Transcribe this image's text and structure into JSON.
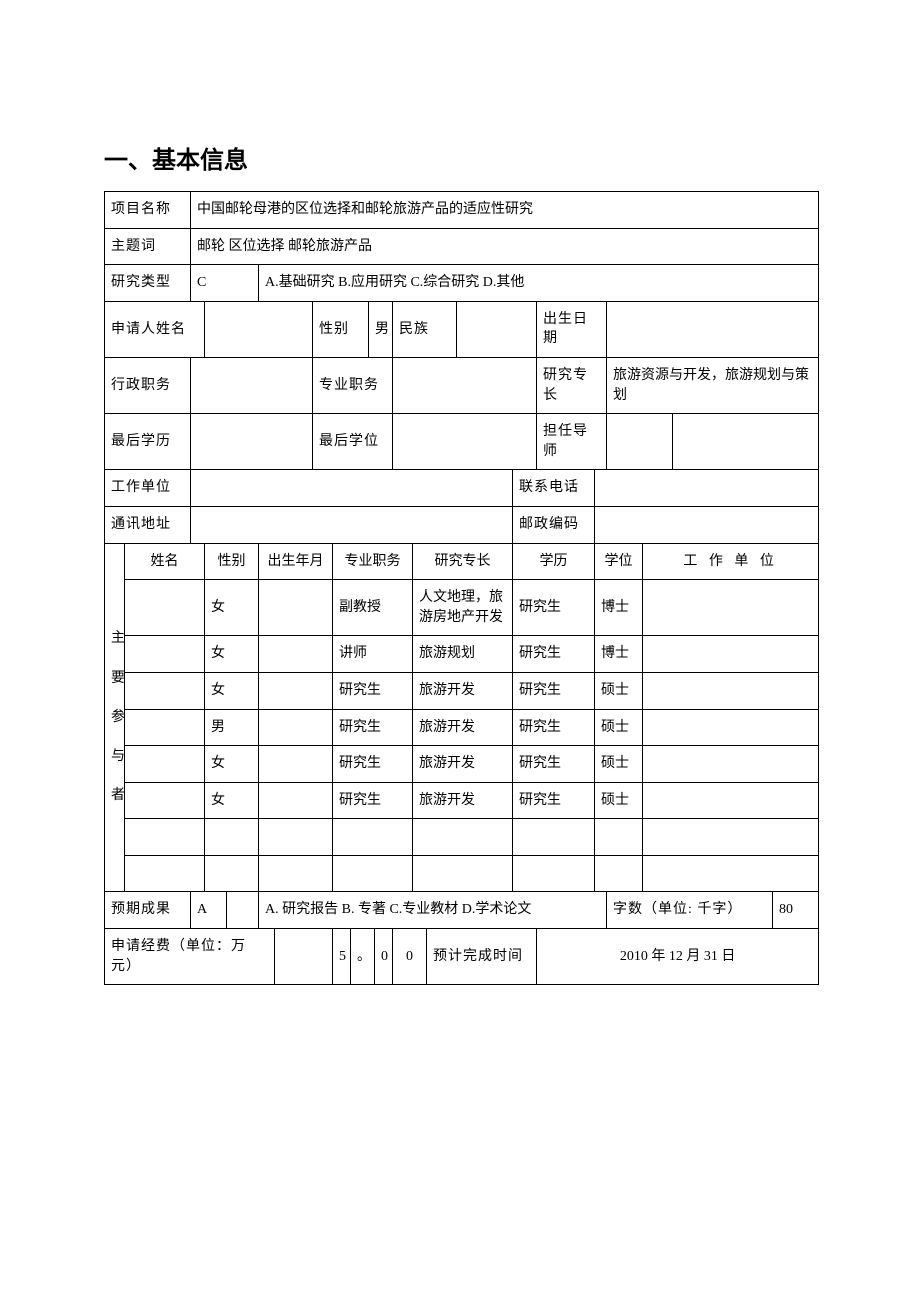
{
  "heading": "一、基本信息",
  "labels": {
    "project_name": "项目名称",
    "keywords": "主题词",
    "research_type": "研究类型",
    "applicant_name": "申请人姓名",
    "gender": "性别",
    "ethnicity": "民族",
    "birth_date": "出生日期",
    "admin_post": "行政职务",
    "pro_post": "专业职务",
    "specialty": "研究专长",
    "last_edu": "最后学历",
    "last_degree": "最后学位",
    "supervisor": "担任导师",
    "work_unit": "工作单位",
    "phone": "联系电话",
    "address": "通讯地址",
    "postcode": "邮政编码",
    "participants": "主\n要\n参\n与\n者",
    "p_name": "姓名",
    "p_gender": "性别",
    "p_birth": "出生年月",
    "p_post": "专业职务",
    "p_spec": "研究专长",
    "p_edu": "学历",
    "p_degree": "学位",
    "p_unit": "工 作 单 位",
    "expected_result": "预期成果",
    "word_count": "字数（单位: 千字）",
    "budget": "申请经费（单位：万元）",
    "est_completion": "预计完成时间"
  },
  "values": {
    "project_name": "中国邮轮母港的区位选择和邮轮旅游产品的适应性研究",
    "keywords": "邮轮 区位选择 邮轮旅游产品",
    "research_type_code": "C",
    "research_type_options": "A.基础研究 B.应用研究 C.综合研究 D.其他",
    "applicant_gender": "男",
    "specialty_text": "旅游资源与开发，旅游规划与策划",
    "expected_result_code": "A",
    "expected_result_options": "A. 研究报告 B. 专著 C.专业教材 D.学术论文",
    "word_count": "80",
    "budget_d1": "5",
    "budget_dot": "。",
    "budget_d2": "0",
    "budget_d3": "0",
    "completion_date": "2010 年 12 月 31   日"
  },
  "participants": [
    {
      "name": "",
      "gender": "女",
      "birth": "",
      "post": "副教授",
      "spec": "人文地理，旅游房地产开发",
      "edu": "研究生",
      "degree": "博士",
      "unit": ""
    },
    {
      "name": "",
      "gender": "女",
      "birth": "",
      "post": "讲师",
      "spec": "旅游规划",
      "edu": "研究生",
      "degree": "博士",
      "unit": ""
    },
    {
      "name": "",
      "gender": "女",
      "birth": "",
      "post": "研究生",
      "spec": "旅游开发",
      "edu": "研究生",
      "degree": "硕士",
      "unit": ""
    },
    {
      "name": "",
      "gender": "男",
      "birth": "",
      "post": "研究生",
      "spec": "旅游开发",
      "edu": "研究生",
      "degree": "硕士",
      "unit": ""
    },
    {
      "name": "",
      "gender": "女",
      "birth": "",
      "post": "研究生",
      "spec": "旅游开发",
      "edu": "研究生",
      "degree": "硕士",
      "unit": ""
    },
    {
      "name": "",
      "gender": "女",
      "birth": "",
      "post": "研究生",
      "spec": "旅游开发",
      "edu": "研究生",
      "degree": "硕士",
      "unit": ""
    },
    {
      "name": "",
      "gender": "",
      "birth": "",
      "post": "",
      "spec": "",
      "edu": "",
      "degree": "",
      "unit": ""
    },
    {
      "name": "",
      "gender": "",
      "birth": "",
      "post": "",
      "spec": "",
      "edu": "",
      "degree": "",
      "unit": ""
    }
  ],
  "style": {
    "page_bg": "#ffffff",
    "border_color": "#000000",
    "text_color": "#000000",
    "heading_fontsize": 24,
    "cell_fontsize": 14
  }
}
